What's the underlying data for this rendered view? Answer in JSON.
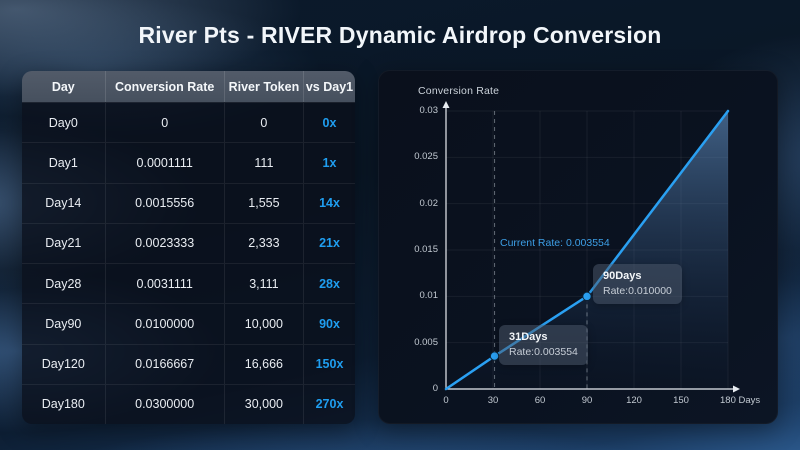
{
  "page": {
    "title": "River Pts - RIVER Dynamic Airdrop Conversion"
  },
  "table": {
    "columns": [
      "Day",
      "Conversion Rate",
      "River Token",
      "vs Day1"
    ],
    "rows": [
      {
        "day": "Day0",
        "rate": "0",
        "token": "0",
        "multiplier": "0x"
      },
      {
        "day": "Day1",
        "rate": "0.0001111",
        "token": "111",
        "multiplier": "1x"
      },
      {
        "day": "Day14",
        "rate": "0.0015556",
        "token": "1,555",
        "multiplier": "14x"
      },
      {
        "day": "Day21",
        "rate": "0.0023333",
        "token": "2,333",
        "multiplier": "21x"
      },
      {
        "day": "Day28",
        "rate": "0.0031111",
        "token": "3,111",
        "multiplier": "28x"
      },
      {
        "day": "Day90",
        "rate": "0.0100000",
        "token": "10,000",
        "multiplier": "90x"
      },
      {
        "day": "Day120",
        "rate": "0.0166667",
        "token": "16,666",
        "multiplier": "150x"
      },
      {
        "day": "Day180",
        "rate": "0.0300000",
        "token": "30,000",
        "multiplier": "270x"
      }
    ]
  },
  "chart_data": {
    "type": "line",
    "title": "Conversion Rate",
    "x": [
      0,
      31,
      90,
      180
    ],
    "y": [
      0,
      0.003554,
      0.01,
      0.03
    ],
    "xlabel": "Days",
    "ylabel": "Conversion Rate",
    "xlim": [
      0,
      180
    ],
    "ylim": [
      0,
      0.03
    ],
    "x_ticks": [
      0,
      30,
      60,
      90,
      120,
      150,
      180
    ],
    "x_tick_labels": [
      "0",
      "30",
      "60",
      "90",
      "120",
      "150",
      "180 Days"
    ],
    "y_ticks": [
      0,
      0.005,
      0.01,
      0.015,
      0.02,
      0.025,
      0.03
    ],
    "y_tick_labels": [
      "0",
      "0.005",
      "0.01",
      "0.015",
      "0.02",
      "0.025",
      "0.03"
    ],
    "grid": true,
    "legend": "none",
    "markers": [
      {
        "x": 31,
        "y": 0.003554
      },
      {
        "x": 90,
        "y": 0.01
      }
    ],
    "guides": [
      {
        "x": 31,
        "from_top": true
      },
      {
        "x": 90,
        "from_top": false
      }
    ],
    "annotations": {
      "current_rate_label": "Current Rate: 0.003554",
      "tooltips": [
        {
          "title": "31Days",
          "rate": "Rate:0.003554"
        },
        {
          "title": "90Days",
          "rate": "Rate:0.010000"
        }
      ]
    },
    "line_color": "#2aa0f2",
    "marker_color": "#2aa0f2",
    "area_top_color": "rgba(110,160,215,0.55)",
    "area_bottom_color": "rgba(30,60,100,0.02)",
    "axis_color": "#e8ecf1",
    "grid_color": "rgba(255,255,255,0.06)",
    "guide_color": "rgba(205,215,225,0.45)"
  },
  "colors": {
    "accent_blue": "#1f9ef0"
  }
}
